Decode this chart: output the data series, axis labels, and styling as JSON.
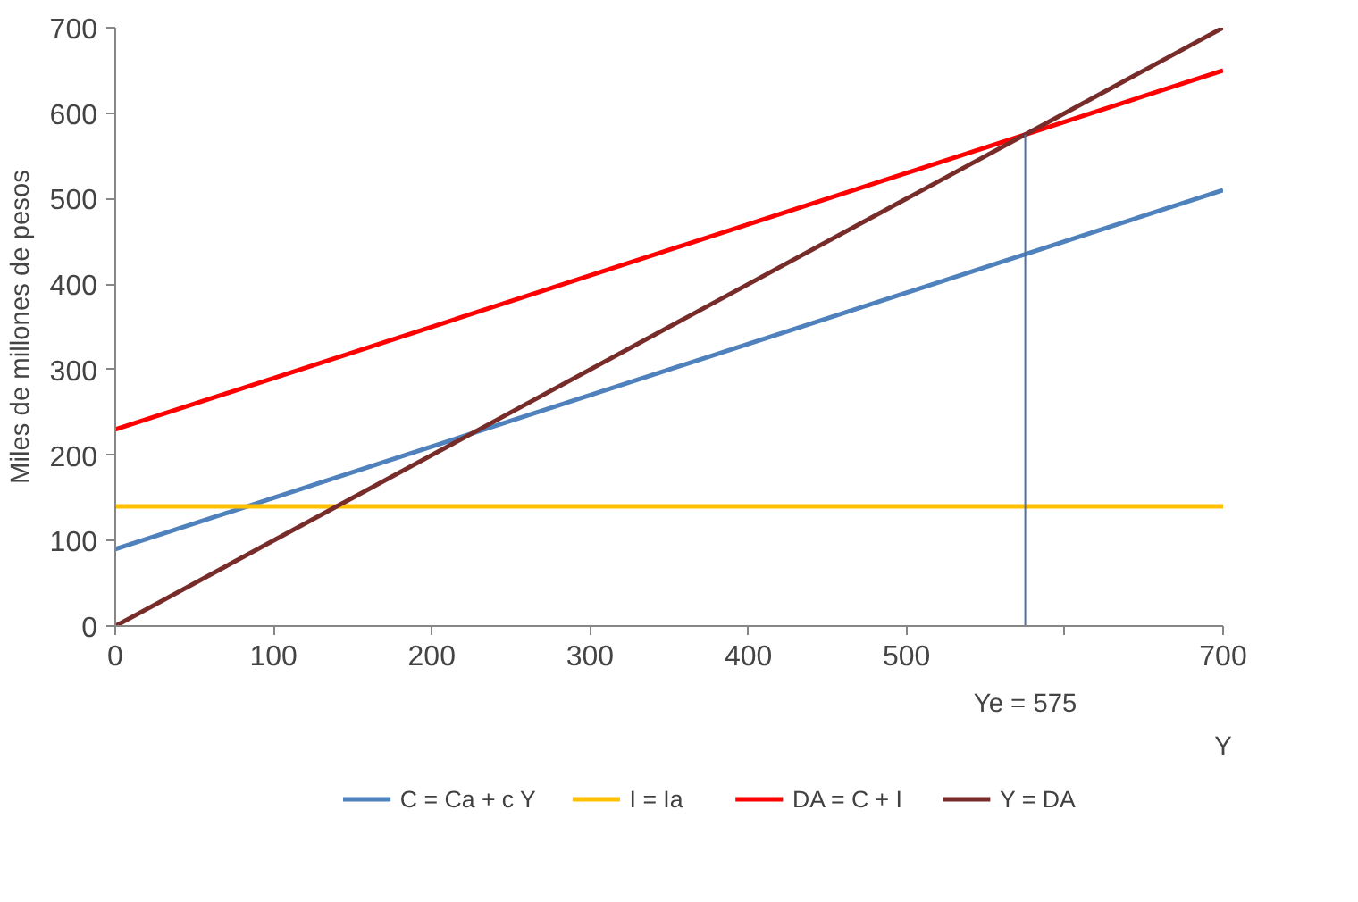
{
  "chart_data": {
    "type": "line",
    "xlabel": "Y",
    "ylabel": "Miles de millones de pesos",
    "x": [
      0,
      700
    ],
    "series": [
      {
        "name": "C = Ca + c Y",
        "color": "#4f81bd",
        "values": [
          90,
          510
        ]
      },
      {
        "name": "I = Ia",
        "color": "#ffc000",
        "values": [
          140,
          140
        ]
      },
      {
        "name": "DA = C + I",
        "color": "#ff0000",
        "values": [
          230,
          650
        ]
      },
      {
        "name": "Y = DA",
        "color": "#772c2a",
        "values": [
          0,
          700
        ]
      },
      {
        "color": "#4f6f9f",
        "x": [
          575,
          575
        ],
        "values": [
          0,
          575
        ]
      }
    ],
    "annotations": [
      {
        "text": "Ye = 575",
        "x": 575,
        "y": 0
      }
    ],
    "xlim": [
      0,
      700
    ],
    "ylim": [
      0,
      700
    ],
    "xticks": [
      0,
      100,
      200,
      300,
      400,
      500,
      {
        "value": 600,
        "label": null
      },
      700
    ],
    "yticks": [
      0,
      100,
      200,
      300,
      400,
      500,
      600,
      700
    ],
    "grid": false,
    "legend": "bottom",
    "marker": "none",
    "line_style": "solid"
  }
}
